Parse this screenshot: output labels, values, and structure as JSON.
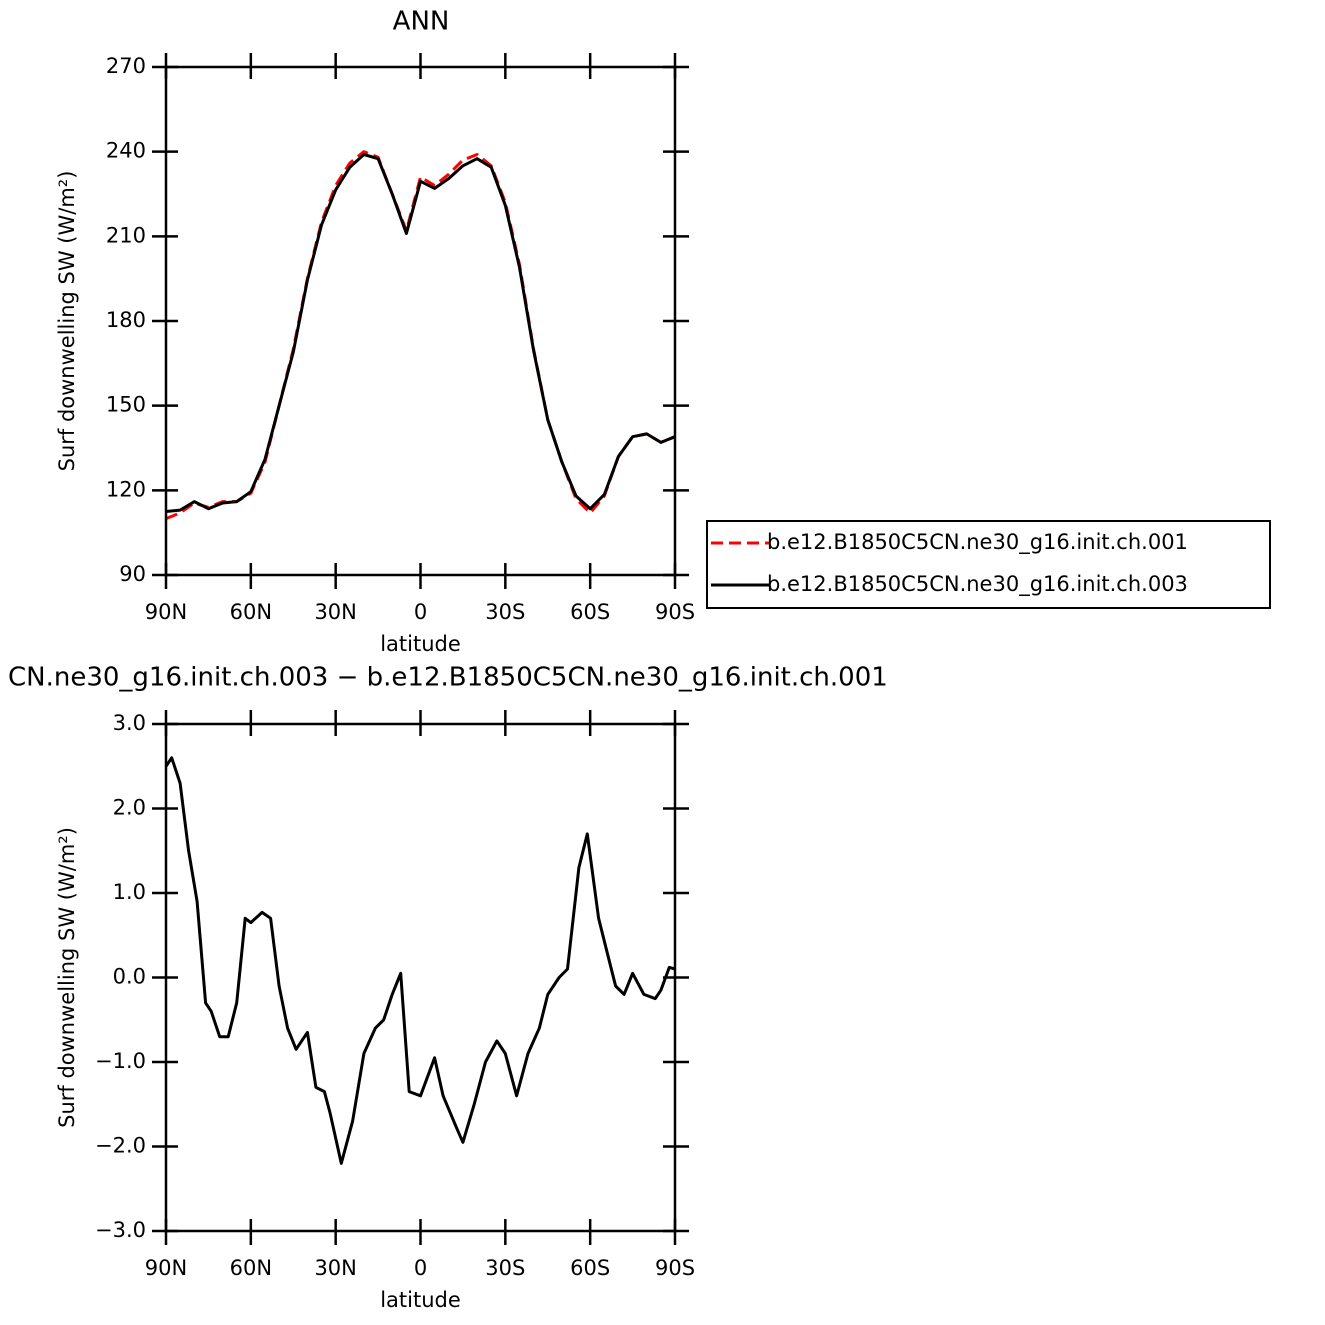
{
  "chart_data": [
    {
      "type": "line",
      "title": "ANN",
      "xlabel": "latitude",
      "ylabel": "Surf downwelling SW (W/m²)",
      "x": [
        90,
        85,
        80,
        75,
        70,
        65,
        60,
        55,
        50,
        45,
        40,
        35,
        30,
        25,
        20,
        15,
        10,
        5,
        0,
        -5,
        -10,
        -15,
        -20,
        -25,
        -30,
        -35,
        -40,
        -45,
        -50,
        -55,
        -60,
        -65,
        -70,
        -75,
        -80,
        -85,
        -90
      ],
      "series": [
        {
          "name": "b.e12.B1850C5CN.ne30_g16.init.ch.001",
          "color": "#ff0000",
          "style": "dashed",
          "values": [
            110,
            112,
            115.5,
            114,
            116,
            116,
            119,
            130,
            150,
            170,
            195,
            215,
            228,
            236,
            240,
            238,
            225,
            212,
            231,
            228,
            232,
            237,
            239,
            235,
            222,
            200,
            170,
            145,
            130,
            117,
            112,
            118,
            132,
            139,
            140,
            137,
            139
          ]
        },
        {
          "name": "b.e12.B1850C5CN.ne30_g16.init.ch.003",
          "color": "#000000",
          "style": "solid",
          "values": [
            112.5,
            113,
            116,
            113.5,
            115.5,
            116,
            119.5,
            131,
            150,
            169,
            194.5,
            214,
            226.5,
            234.5,
            239,
            237.5,
            225,
            211,
            229.5,
            227,
            230.5,
            235,
            237.5,
            234.5,
            221,
            199,
            169.5,
            145,
            130,
            118,
            113.5,
            118.5,
            132,
            139,
            140,
            137,
            139
          ]
        }
      ],
      "xlim": [
        90,
        -90
      ],
      "xticks": [
        {
          "value": 90,
          "label": "90N"
        },
        {
          "value": 60,
          "label": "60N"
        },
        {
          "value": 30,
          "label": "30N"
        },
        0,
        {
          "value": -30,
          "label": "30S"
        },
        {
          "value": -60,
          "label": "60S"
        },
        {
          "value": -90,
          "label": "90S"
        }
      ],
      "ylim": [
        90,
        270
      ],
      "yticks": [
        90,
        120,
        150,
        180,
        210,
        240,
        270
      ],
      "legend": "right"
    },
    {
      "type": "line",
      "title": "CN.ne30_g16.init.ch.003 − b.e12.B1850C5CN.ne30_g16.init.ch.001",
      "xlabel": "latitude",
      "ylabel": "Surf downwelling SW (W/m²)",
      "x": [
        90,
        88,
        85,
        82,
        79,
        76,
        74,
        71,
        68,
        65,
        62,
        60,
        56,
        53,
        50,
        47,
        44,
        40,
        37,
        34,
        32,
        28,
        24,
        20,
        16,
        13,
        10,
        7,
        4,
        0,
        -5,
        -8,
        -13,
        -15,
        -19,
        -23,
        -27,
        -30,
        -34,
        -38,
        -42,
        -45,
        -49,
        -52,
        -56,
        -59,
        -63,
        -66,
        -69,
        -72,
        -75,
        -79,
        -83,
        -85,
        -88,
        -90
      ],
      "series": [
        {
          "color": "#000000",
          "style": "solid",
          "values": [
            2.5,
            2.6,
            2.3,
            1.5,
            0.9,
            -0.3,
            -0.4,
            -0.7,
            -0.7,
            -0.3,
            0.7,
            0.65,
            0.77,
            0.7,
            -0.1,
            -0.6,
            -0.85,
            -0.65,
            -1.3,
            -1.35,
            -1.6,
            -2.2,
            -1.7,
            -0.9,
            -0.6,
            -0.5,
            -0.2,
            0.05,
            -1.35,
            -1.4,
            -0.95,
            -1.4,
            -1.8,
            -1.95,
            -1.5,
            -1.0,
            -0.75,
            -0.9,
            -1.4,
            -0.9,
            -0.6,
            -0.2,
            0.0,
            0.1,
            1.3,
            1.7,
            0.7,
            0.3,
            -0.1,
            -0.2,
            0.05,
            -0.2,
            -0.25,
            -0.15,
            0.12,
            0.1
          ]
        }
      ],
      "xlim": [
        90,
        -90
      ],
      "xticks": [
        {
          "value": 90,
          "label": "90N"
        },
        {
          "value": 60,
          "label": "60N"
        },
        {
          "value": 30,
          "label": "30N"
        },
        0,
        {
          "value": -30,
          "label": "30S"
        },
        {
          "value": -60,
          "label": "60S"
        },
        {
          "value": -90,
          "label": "90S"
        }
      ],
      "ylim": [
        -3,
        3
      ],
      "yticks": [
        {
          "value": -3,
          "label": "−3.0"
        },
        {
          "value": -2,
          "label": "−2.0"
        },
        {
          "value": -1,
          "label": "−1.0"
        },
        {
          "value": 0,
          "label": "0.0"
        },
        {
          "value": 1,
          "label": "1.0"
        },
        {
          "value": 2,
          "label": "2.0"
        },
        {
          "value": 3,
          "label": "3.0"
        }
      ]
    }
  ]
}
